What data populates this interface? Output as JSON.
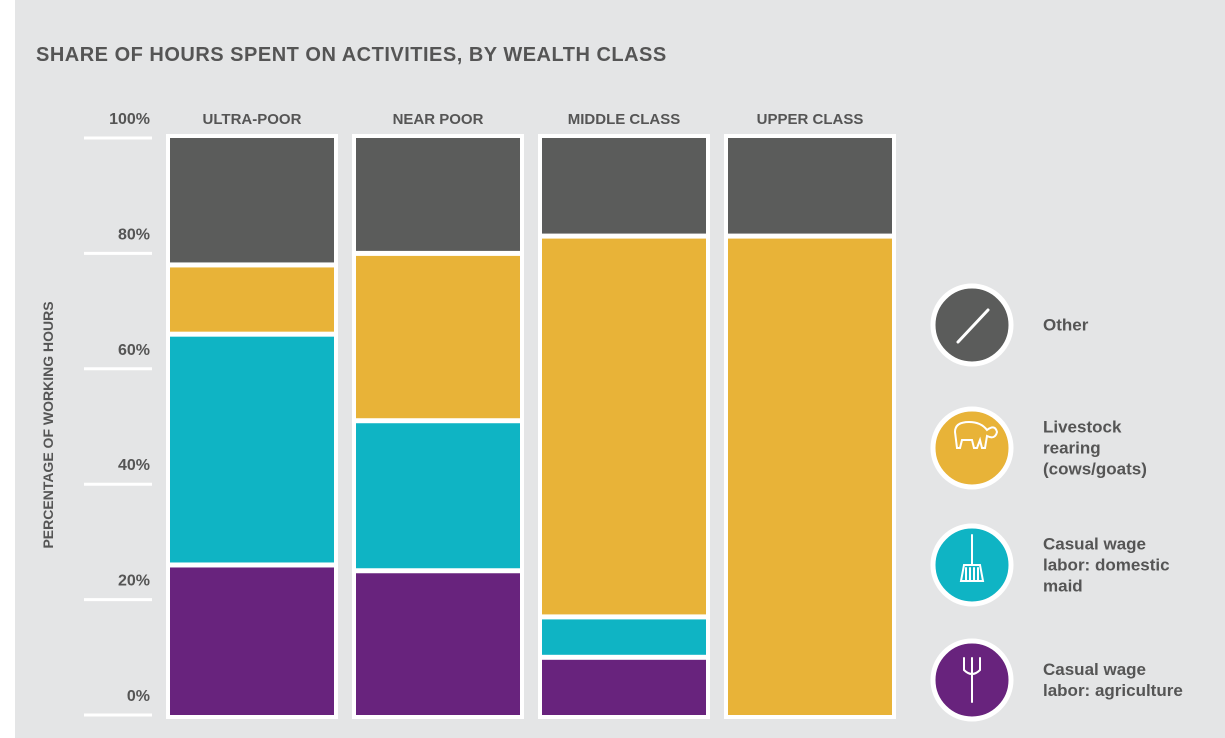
{
  "chart_data": {
    "type": "bar",
    "stacked": true,
    "title": "SHARE OF HOURS SPENT ON ACTIVITIES, BY WEALTH CLASS",
    "y_label": "PERCENTAGE OF WORKING HOURS",
    "categories": [
      "ULTRA-POOR",
      "NEAR POOR",
      "MIDDLE CLASS",
      "UPPER CLASS"
    ],
    "series": [
      {
        "name": "Casual wage labor: agriculture",
        "color": "#68237d",
        "values": [
          26,
          25,
          10,
          0
        ]
      },
      {
        "name": "Casual wage labor: domestic maid",
        "color": "#0fb4c4",
        "values": [
          40,
          26,
          7,
          0
        ]
      },
      {
        "name": "Livestock rearing (cows/goats)",
        "color": "#e8b338",
        "values": [
          12,
          29,
          66,
          83
        ]
      },
      {
        "name": "Other",
        "color": "#5b5c5b",
        "values": [
          22,
          20,
          17,
          17
        ]
      }
    ],
    "ylim": [
      0,
      100
    ],
    "yticks": [
      {
        "value": 0,
        "label": "0%"
      },
      {
        "value": 20,
        "label": "20%"
      },
      {
        "value": 40,
        "label": "40%"
      },
      {
        "value": 60,
        "label": "60%"
      },
      {
        "value": 80,
        "label": "80%"
      },
      {
        "value": 100,
        "label": "100%"
      }
    ],
    "legend": "right"
  }
}
